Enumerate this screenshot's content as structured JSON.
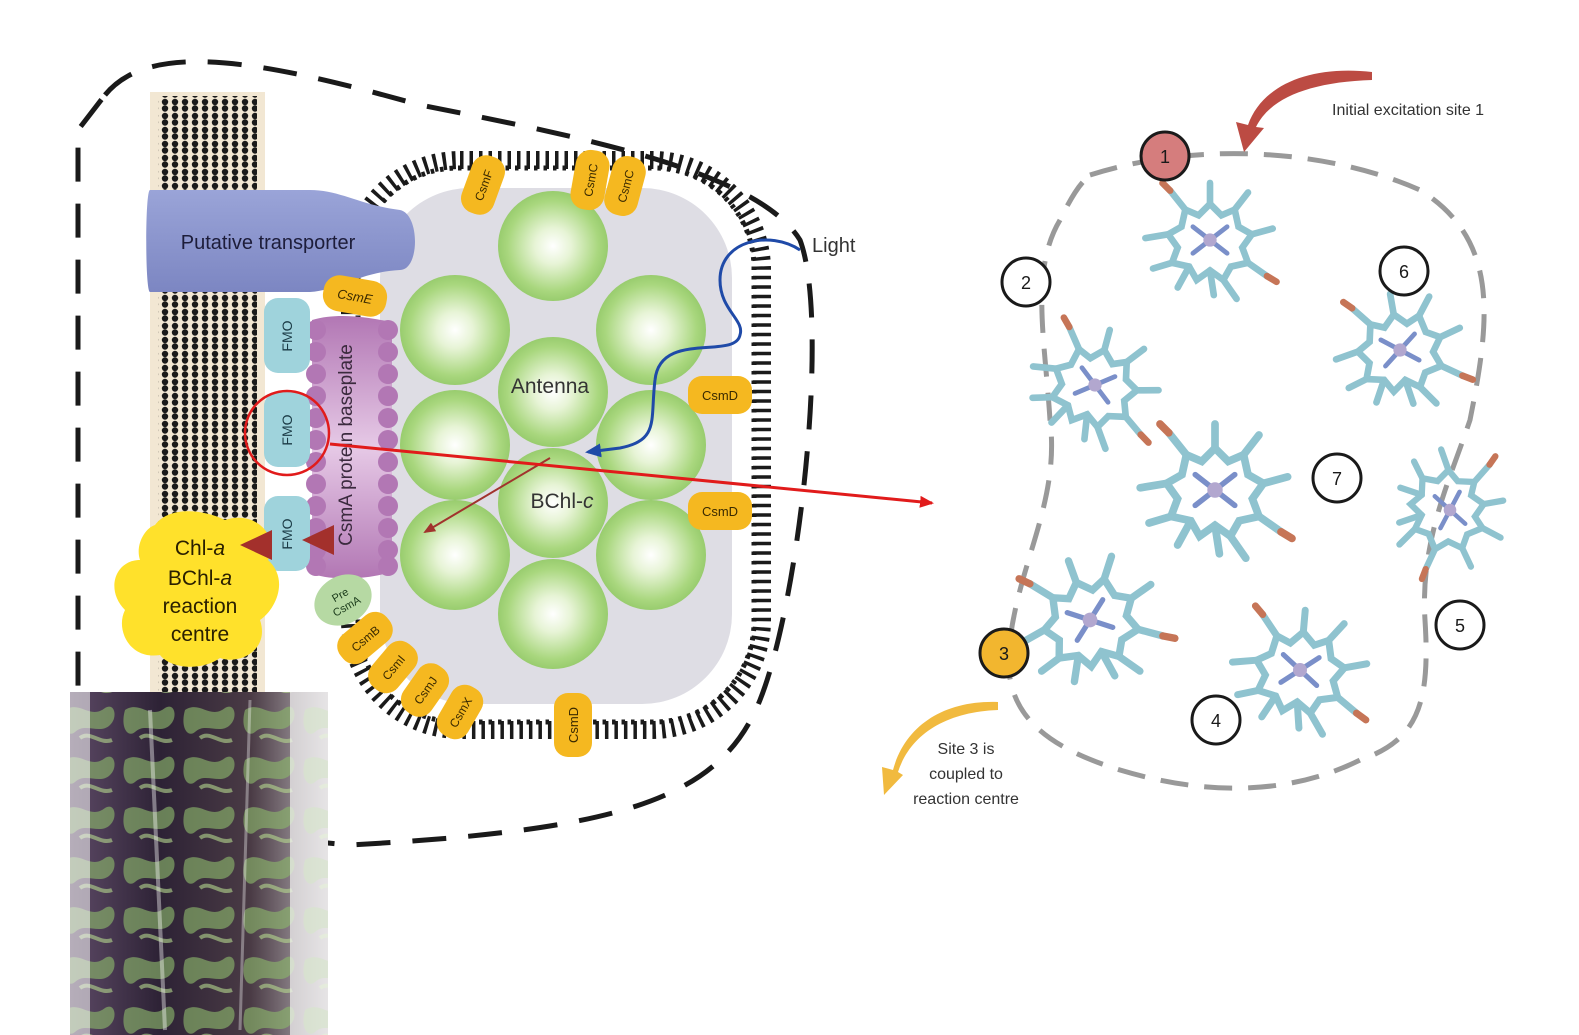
{
  "left_panel": {
    "transporter_label": "Putative transporter",
    "light_label": "Light",
    "antenna_label": "Antenna",
    "bchl_label_main": "BChl-",
    "bchl_label_italic": "c",
    "baseplate_label": "CsmA protein baseplate",
    "fmo_label": "FMO",
    "reaction_centre": {
      "line1_main": "Chl-",
      "line1_italic": "a",
      "line2_main": "BChl-",
      "line2_italic": "a",
      "line3": "reaction",
      "line4": "centre"
    },
    "proteins": {
      "csmF": "CsmF",
      "csmC1": "CsmC",
      "csmC2": "CsmC",
      "csmE": "CsmE",
      "csmD1": "CsmD",
      "csmD2": "CsmD",
      "csmD3": "CsmD",
      "pre1": "Pre",
      "pre2": "CsmA",
      "csmB": "CsmB",
      "csmI": "CsmI",
      "csmJ": "CsmJ",
      "csmX": "CsmX"
    }
  },
  "right_panel": {
    "excitation_label": "Initial excitation site 1",
    "coupled_line1": "Site 3 is",
    "coupled_line2": "coupled to",
    "coupled_line3": "reaction centre",
    "sites": [
      "1",
      "2",
      "3",
      "4",
      "5",
      "6",
      "7"
    ]
  },
  "colors": {
    "transporter": "#8b95cc",
    "fmo": "#9fd3dc",
    "baseplate": "#b77fb8",
    "protein_yellow": "#f5b820",
    "reaction_centre": "#ffe12b",
    "antenna_green": "#a9d77e",
    "site1_fill": "#d57d7d",
    "site3_fill": "#f2b62f",
    "molecule_stick": "#8fc3cf",
    "highlight_red": "#e11b1b"
  }
}
